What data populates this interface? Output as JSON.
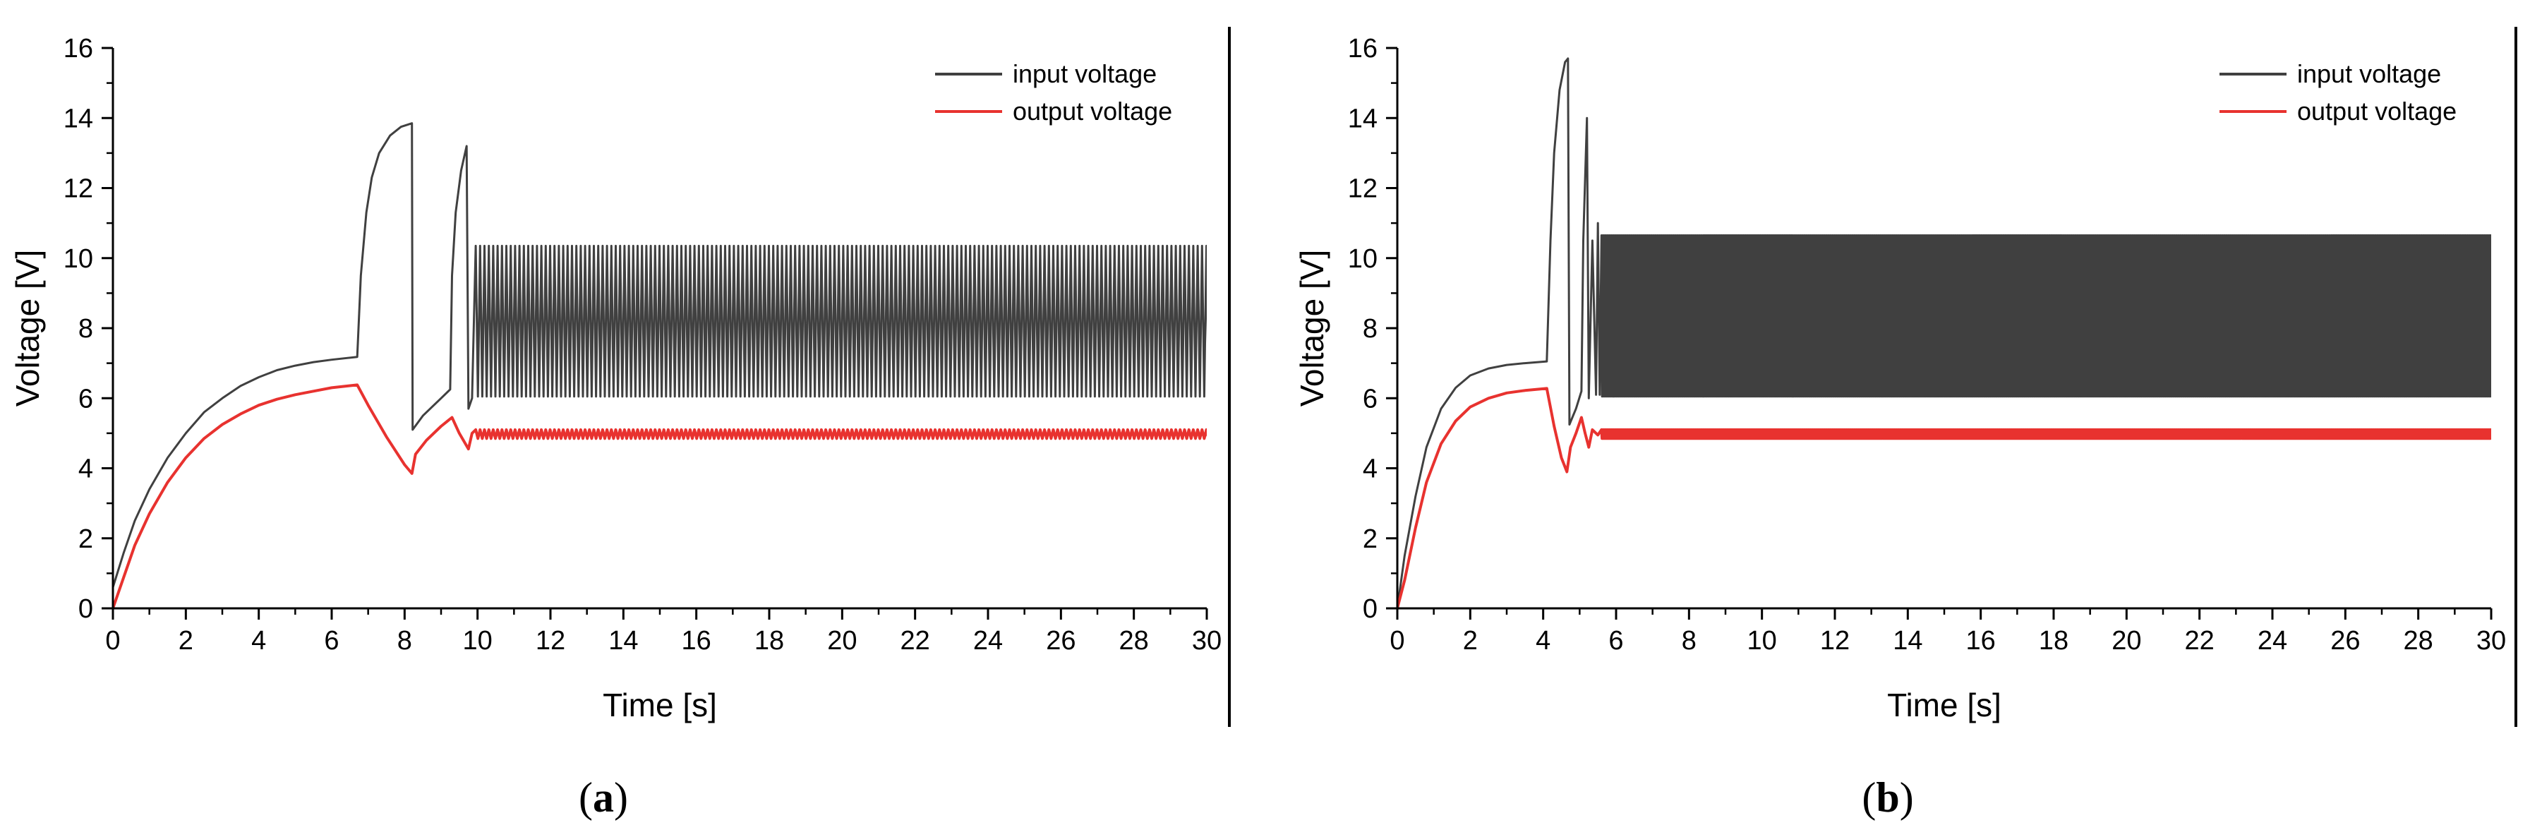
{
  "chart_data": [
    {
      "type": "line",
      "panel_label": "(a)",
      "caption_letter": "a",
      "xlabel": "Time [s]",
      "ylabel": "Voltage [V]",
      "xlim": [
        0,
        30
      ],
      "ylim": [
        0,
        16
      ],
      "x_ticks": [
        0,
        2,
        4,
        6,
        8,
        10,
        12,
        14,
        16,
        18,
        20,
        22,
        24,
        26,
        28,
        30
      ],
      "y_ticks": [
        0,
        2,
        4,
        6,
        8,
        10,
        12,
        14,
        16
      ],
      "grid": false,
      "legend": "top-right",
      "series": [
        {
          "name": "input voltage",
          "color": "#404040",
          "points": [
            [
              0,
              0.6
            ],
            [
              0.3,
              1.6
            ],
            [
              0.6,
              2.5
            ],
            [
              1,
              3.4
            ],
            [
              1.5,
              4.3
            ],
            [
              2,
              5.0
            ],
            [
              2.5,
              5.6
            ],
            [
              3,
              6.0
            ],
            [
              3.5,
              6.35
            ],
            [
              4,
              6.6
            ],
            [
              4.5,
              6.8
            ],
            [
              5,
              6.93
            ],
            [
              5.5,
              7.03
            ],
            [
              6,
              7.1
            ],
            [
              6.7,
              7.18
            ],
            [
              6.8,
              9.5
            ],
            [
              6.95,
              11.3
            ],
            [
              7.1,
              12.3
            ],
            [
              7.3,
              13.0
            ],
            [
              7.6,
              13.5
            ],
            [
              7.9,
              13.75
            ],
            [
              8.2,
              13.85
            ],
            [
              8.22,
              5.1
            ],
            [
              8.5,
              5.5
            ],
            [
              8.8,
              5.8
            ],
            [
              9.0,
              6.0
            ],
            [
              9.25,
              6.25
            ],
            [
              9.3,
              9.5
            ],
            [
              9.4,
              11.3
            ],
            [
              9.55,
              12.5
            ],
            [
              9.7,
              13.2
            ],
            [
              9.75,
              5.7
            ],
            [
              9.85,
              6.0
            ]
          ],
          "oscillation": {
            "x_start": 9.95,
            "x_end": 30,
            "low": 6.05,
            "high": 10.35,
            "period_s": 0.12
          }
        },
        {
          "name": "output voltage",
          "color": "#e8322f",
          "points": [
            [
              0,
              0
            ],
            [
              0.3,
              0.9
            ],
            [
              0.6,
              1.8
            ],
            [
              1,
              2.7
            ],
            [
              1.5,
              3.6
            ],
            [
              2,
              4.3
            ],
            [
              2.5,
              4.85
            ],
            [
              3,
              5.25
            ],
            [
              3.5,
              5.55
            ],
            [
              4,
              5.8
            ],
            [
              4.5,
              5.97
            ],
            [
              5,
              6.1
            ],
            [
              5.5,
              6.2
            ],
            [
              6,
              6.3
            ],
            [
              6.7,
              6.38
            ],
            [
              7,
              5.8
            ],
            [
              7.5,
              4.9
            ],
            [
              8,
              4.1
            ],
            [
              8.2,
              3.85
            ],
            [
              8.3,
              4.4
            ],
            [
              8.6,
              4.8
            ],
            [
              9,
              5.2
            ],
            [
              9.3,
              5.45
            ],
            [
              9.5,
              5.0
            ],
            [
              9.75,
              4.55
            ],
            [
              9.85,
              5.0
            ]
          ],
          "oscillation": {
            "x_start": 9.95,
            "x_end": 30,
            "low": 4.85,
            "high": 5.1,
            "period_s": 0.12
          }
        }
      ]
    },
    {
      "type": "line",
      "panel_label": "(b)",
      "caption_letter": "b",
      "xlabel": "Time [s]",
      "ylabel": "Voltage [V]",
      "xlim": [
        0,
        30
      ],
      "ylim": [
        0,
        16
      ],
      "x_ticks": [
        0,
        2,
        4,
        6,
        8,
        10,
        12,
        14,
        16,
        18,
        20,
        22,
        24,
        26,
        28,
        30
      ],
      "y_ticks": [
        0,
        2,
        4,
        6,
        8,
        10,
        12,
        14,
        16
      ],
      "grid": false,
      "legend": "top-right",
      "series": [
        {
          "name": "input voltage",
          "color": "#404040",
          "points": [
            [
              0,
              0
            ],
            [
              0.2,
              1.5
            ],
            [
              0.5,
              3.2
            ],
            [
              0.8,
              4.6
            ],
            [
              1.2,
              5.7
            ],
            [
              1.6,
              6.3
            ],
            [
              2,
              6.65
            ],
            [
              2.5,
              6.85
            ],
            [
              3,
              6.95
            ],
            [
              3.5,
              7.0
            ],
            [
              4.1,
              7.05
            ],
            [
              4.2,
              10.5
            ],
            [
              4.3,
              13.0
            ],
            [
              4.45,
              14.8
            ],
            [
              4.6,
              15.6
            ],
            [
              4.68,
              15.7
            ],
            [
              4.72,
              5.25
            ],
            [
              4.9,
              5.7
            ],
            [
              5.05,
              6.2
            ],
            [
              5.1,
              10.5
            ],
            [
              5.2,
              14.0
            ],
            [
              5.25,
              6.0
            ],
            [
              5.35,
              10.5
            ],
            [
              5.45,
              6.1
            ],
            [
              5.5,
              11.0
            ],
            [
              5.55,
              6.1
            ]
          ],
          "oscillation": {
            "x_start": 5.6,
            "x_end": 30,
            "low": 6.05,
            "high": 10.65,
            "period_s": 0.03
          }
        },
        {
          "name": "output voltage",
          "color": "#e8322f",
          "points": [
            [
              0,
              0
            ],
            [
              0.2,
              0.8
            ],
            [
              0.5,
              2.3
            ],
            [
              0.8,
              3.6
            ],
            [
              1.2,
              4.7
            ],
            [
              1.6,
              5.35
            ],
            [
              2,
              5.75
            ],
            [
              2.5,
              6.0
            ],
            [
              3,
              6.15
            ],
            [
              3.5,
              6.22
            ],
            [
              4.1,
              6.28
            ],
            [
              4.3,
              5.2
            ],
            [
              4.5,
              4.3
            ],
            [
              4.65,
              3.9
            ],
            [
              4.75,
              4.6
            ],
            [
              4.9,
              5.0
            ],
            [
              5.05,
              5.45
            ],
            [
              5.15,
              5.0
            ],
            [
              5.25,
              4.6
            ],
            [
              5.35,
              5.1
            ],
            [
              5.5,
              4.95
            ]
          ],
          "oscillation": {
            "x_start": 5.6,
            "x_end": 30,
            "low": 4.85,
            "high": 5.1,
            "period_s": 0.03
          }
        }
      ]
    }
  ]
}
